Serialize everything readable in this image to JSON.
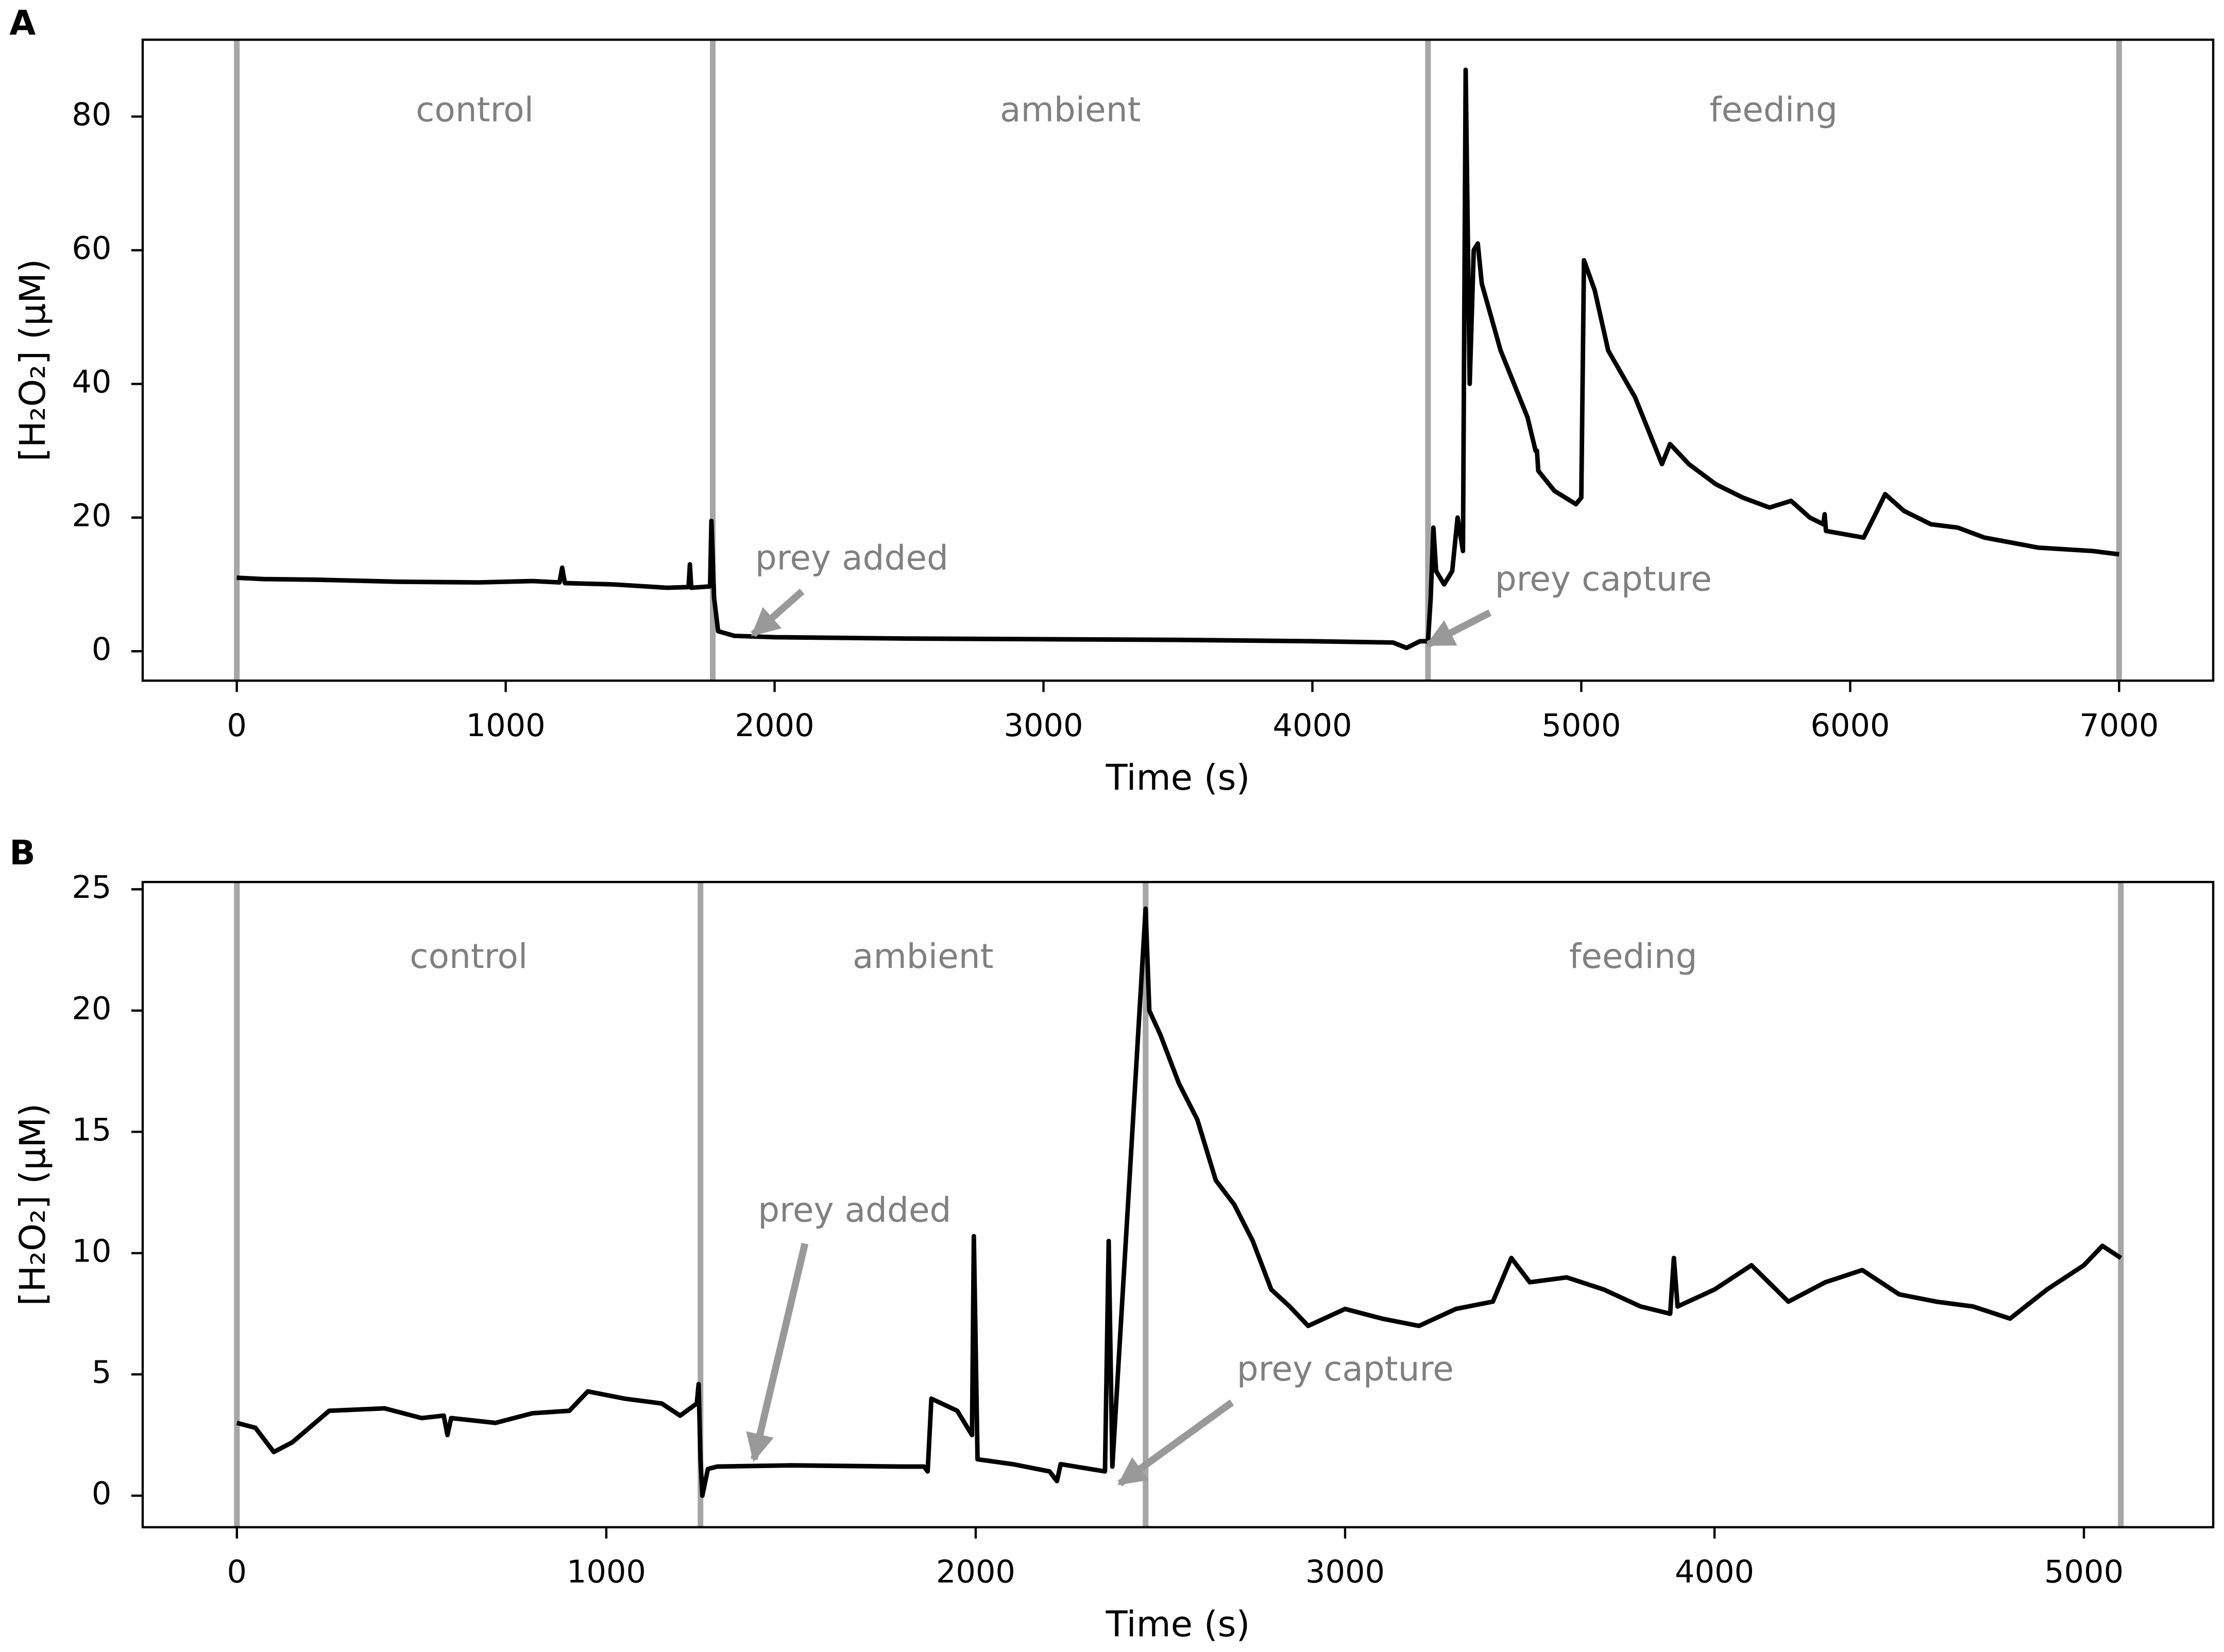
{
  "chart_data": [
    {
      "type": "line",
      "panel_label": "A",
      "xlabel": "Time (s)",
      "ylabel": "[H₂O₂] (μM)",
      "xlim": [
        -350,
        7350
      ],
      "ylim": [
        -4.4,
        91.5
      ],
      "xticks": [
        0,
        1000,
        2000,
        3000,
        4000,
        5000,
        6000,
        7000
      ],
      "yticks": [
        0,
        20,
        40,
        60,
        80
      ],
      "boundaries": [
        0,
        1770,
        4430,
        7000
      ],
      "regions": [
        "control",
        "ambient",
        "feeding"
      ],
      "annotations": [
        {
          "text": "prey added",
          "x": 1920,
          "y": 2.5
        },
        {
          "text": "prey capture",
          "x": 4430,
          "y": 1
        }
      ],
      "color": "#000000",
      "x": [
        0,
        100,
        300,
        600,
        900,
        1100,
        1200,
        1210,
        1220,
        1400,
        1600,
        1680,
        1685,
        1690,
        1760,
        1765,
        1775,
        1790,
        1850,
        2000,
        2500,
        3000,
        3500,
        4000,
        4300,
        4350,
        4400,
        4430,
        4440,
        4450,
        4460,
        4490,
        4520,
        4540,
        4560,
        4570,
        4585,
        4600,
        4615,
        4630,
        4700,
        4800,
        4830,
        4835,
        4840,
        4900,
        4980,
        5000,
        5010,
        5050,
        5100,
        5200,
        5300,
        5330,
        5400,
        5500,
        5600,
        5700,
        5780,
        5850,
        5900,
        5905,
        5910,
        6050,
        6100,
        6130,
        6200,
        6300,
        6400,
        6500,
        6700,
        6900,
        7000
      ],
      "values": [
        11,
        10.8,
        10.7,
        10.4,
        10.3,
        10.5,
        10.3,
        12.5,
        10.2,
        10,
        9.5,
        9.6,
        13,
        9.5,
        9.7,
        19.5,
        8,
        3,
        2.3,
        2.1,
        1.9,
        1.8,
        1.7,
        1.5,
        1.3,
        0.5,
        1.5,
        1.5,
        8,
        18.5,
        12,
        10,
        12,
        20,
        15,
        87,
        40,
        60,
        61,
        55,
        45,
        35,
        30,
        30,
        27,
        24,
        22,
        23,
        58.5,
        54,
        45,
        38,
        28,
        31,
        28,
        25,
        23,
        21.5,
        22.5,
        20,
        19,
        20.5,
        18,
        17,
        21,
        23.5,
        21,
        19,
        18.5,
        17,
        15.5,
        15,
        14.5
      ]
    },
    {
      "type": "line",
      "panel_label": "B",
      "xlabel": "Time (s)",
      "ylabel": "[H₂O₂] (μM)",
      "xlim": [
        -255,
        5350
      ],
      "ylim": [
        -1.3,
        25.3
      ],
      "xticks": [
        0,
        1000,
        2000,
        3000,
        4000,
        5000
      ],
      "yticks": [
        0,
        5,
        10,
        15,
        20,
        25
      ],
      "boundaries": [
        0,
        1255,
        2460,
        5100
      ],
      "regions": [
        "control",
        "ambient",
        "feeding"
      ],
      "annotations": [
        {
          "text": "prey added",
          "x": 1400,
          "y": 1.5
        },
        {
          "text": "prey capture",
          "x": 2390,
          "y": 0.5
        }
      ],
      "color": "#000000",
      "x": [
        0,
        50,
        100,
        150,
        250,
        400,
        500,
        560,
        570,
        580,
        700,
        800,
        900,
        950,
        1050,
        1150,
        1200,
        1245,
        1250,
        1255,
        1260,
        1275,
        1300,
        1500,
        1800,
        1860,
        1870,
        1880,
        1950,
        1990,
        1995,
        2005,
        2100,
        2200,
        2220,
        2230,
        2350,
        2360,
        2370,
        2460,
        2470,
        2500,
        2550,
        2600,
        2650,
        2700,
        2750,
        2800,
        2850,
        2900,
        3000,
        3100,
        3200,
        3300,
        3400,
        3450,
        3500,
        3600,
        3700,
        3800,
        3880,
        3890,
        3900,
        4000,
        4100,
        4200,
        4300,
        4400,
        4500,
        4600,
        4700,
        4800,
        4900,
        5000,
        5050,
        5100
      ],
      "values": [
        3,
        2.8,
        1.8,
        2.2,
        3.5,
        3.6,
        3.2,
        3.3,
        2.5,
        3.2,
        3,
        3.4,
        3.5,
        4.3,
        4,
        3.8,
        3.3,
        3.8,
        4.6,
        1.5,
        0,
        1.1,
        1.2,
        1.25,
        1.2,
        1.2,
        1,
        4,
        3.5,
        2.5,
        10.7,
        1.5,
        1.3,
        1,
        0.6,
        1.3,
        1,
        10.5,
        1.2,
        24.2,
        20,
        19,
        17,
        15.5,
        13,
        12,
        10.5,
        8.5,
        7.8,
        7,
        7.7,
        7.3,
        7,
        7.7,
        8,
        9.8,
        8.8,
        9,
        8.5,
        7.8,
        7.5,
        9.8,
        7.8,
        8.5,
        9.5,
        8,
        8.8,
        9.3,
        8.3,
        8,
        7.8,
        7.3,
        8.5,
        9.5,
        10.3,
        9.8
      ]
    }
  ]
}
